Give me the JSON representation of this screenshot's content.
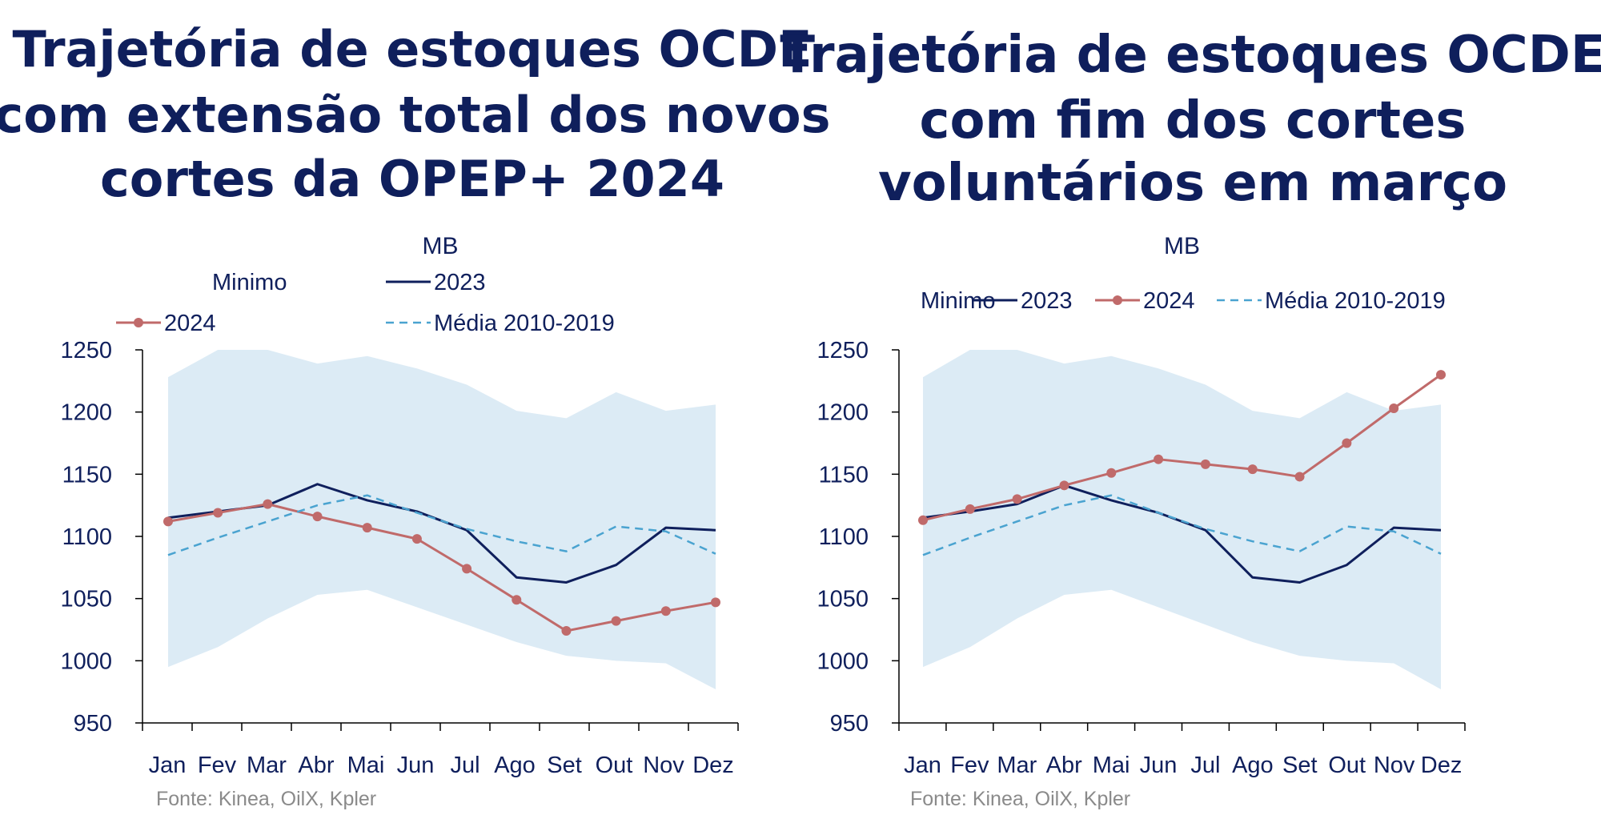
{
  "colors": {
    "title": "#0f1f5c",
    "band": "#dcebf5",
    "series_2023": "#0f1f5c",
    "series_2024": "#c06a6a",
    "media": "#4aa3d0",
    "source": "#8a8a8a"
  },
  "chart_data": [
    {
      "type": "line",
      "title": "Trajetória de estoques OCDE com extensão total dos novos cortes da OPEP+ 2024",
      "title_lines": [
        "Trajetória de estoques OCDE",
        "com extensão total dos novos",
        "cortes da OPEP+ 2024"
      ],
      "unit": "MB",
      "source": "Fonte: Kinea, OilX, Kpler",
      "legend_layout": "two-rows",
      "ylim": [
        950,
        1250
      ],
      "yticks": [
        "1250",
        "1200",
        "1150",
        "1100",
        "1050",
        "1000",
        "950"
      ],
      "categories": [
        "Jan",
        "Fev",
        "Mar",
        "Abr",
        "Mai",
        "Jun",
        "Jul",
        "Ago",
        "Set",
        "Out",
        "Nov",
        "Dez"
      ],
      "band": {
        "name": "Minimo",
        "lower": [
          995,
          1011,
          1034,
          1053,
          1057,
          1043,
          1029,
          1015,
          1004,
          1000,
          998,
          977
        ],
        "upper": [
          1228,
          1250,
          1250,
          1239,
          1245,
          1235,
          1222,
          1201,
          1195,
          1216,
          1201,
          1206
        ]
      },
      "series": [
        {
          "name": "2023",
          "style": "solid",
          "values": [
            1115,
            1120,
            1125,
            1142,
            1129,
            1120,
            1105,
            1067,
            1063,
            1077,
            1107,
            1105
          ]
        },
        {
          "name": "2024",
          "style": "markers",
          "values": [
            1112,
            1119,
            1126,
            1116,
            1107,
            1098,
            1074,
            1049,
            1024,
            1032,
            1040,
            1047
          ]
        },
        {
          "name": "Média 2010-2019",
          "style": "dashed",
          "values": [
            1085,
            1099,
            1112,
            1125,
            1133,
            1119,
            1106,
            1096,
            1088,
            1108,
            1104,
            1086
          ]
        }
      ]
    },
    {
      "type": "line",
      "title": "Trajetória de estoques OCDE com fim dos cortes voluntários em março",
      "title_lines": [
        "Trajetória de estoques OCDE",
        "com fim dos cortes",
        "voluntários em março"
      ],
      "unit": "MB",
      "source": "Fonte: Kinea, OilX, Kpler",
      "legend_layout": "one-row",
      "ylim": [
        950,
        1250
      ],
      "yticks": [
        "1250",
        "1200",
        "1150",
        "1100",
        "1050",
        "1000",
        "950"
      ],
      "categories": [
        "Jan",
        "Fev",
        "Mar",
        "Abr",
        "Mai",
        "Jun",
        "Jul",
        "Ago",
        "Set",
        "Out",
        "Nov",
        "Dez"
      ],
      "band": {
        "name": "Minimo",
        "lower": [
          995,
          1011,
          1034,
          1053,
          1057,
          1043,
          1029,
          1015,
          1004,
          1000,
          998,
          977
        ],
        "upper": [
          1228,
          1250,
          1250,
          1239,
          1245,
          1235,
          1222,
          1201,
          1195,
          1216,
          1201,
          1206
        ]
      },
      "series": [
        {
          "name": "2023",
          "style": "solid",
          "values": [
            1115,
            1120,
            1126,
            1141,
            1129,
            1119,
            1105,
            1067,
            1063,
            1077,
            1107,
            1105
          ]
        },
        {
          "name": "2024",
          "style": "markers",
          "values": [
            1113,
            1122,
            1130,
            1141,
            1151,
            1162,
            1158,
            1154,
            1148,
            1175,
            1203,
            1230
          ]
        },
        {
          "name": "Média 2010-2019",
          "style": "dashed",
          "values": [
            1085,
            1099,
            1112,
            1125,
            1133,
            1119,
            1106,
            1096,
            1088,
            1108,
            1104,
            1086
          ]
        }
      ]
    }
  ]
}
